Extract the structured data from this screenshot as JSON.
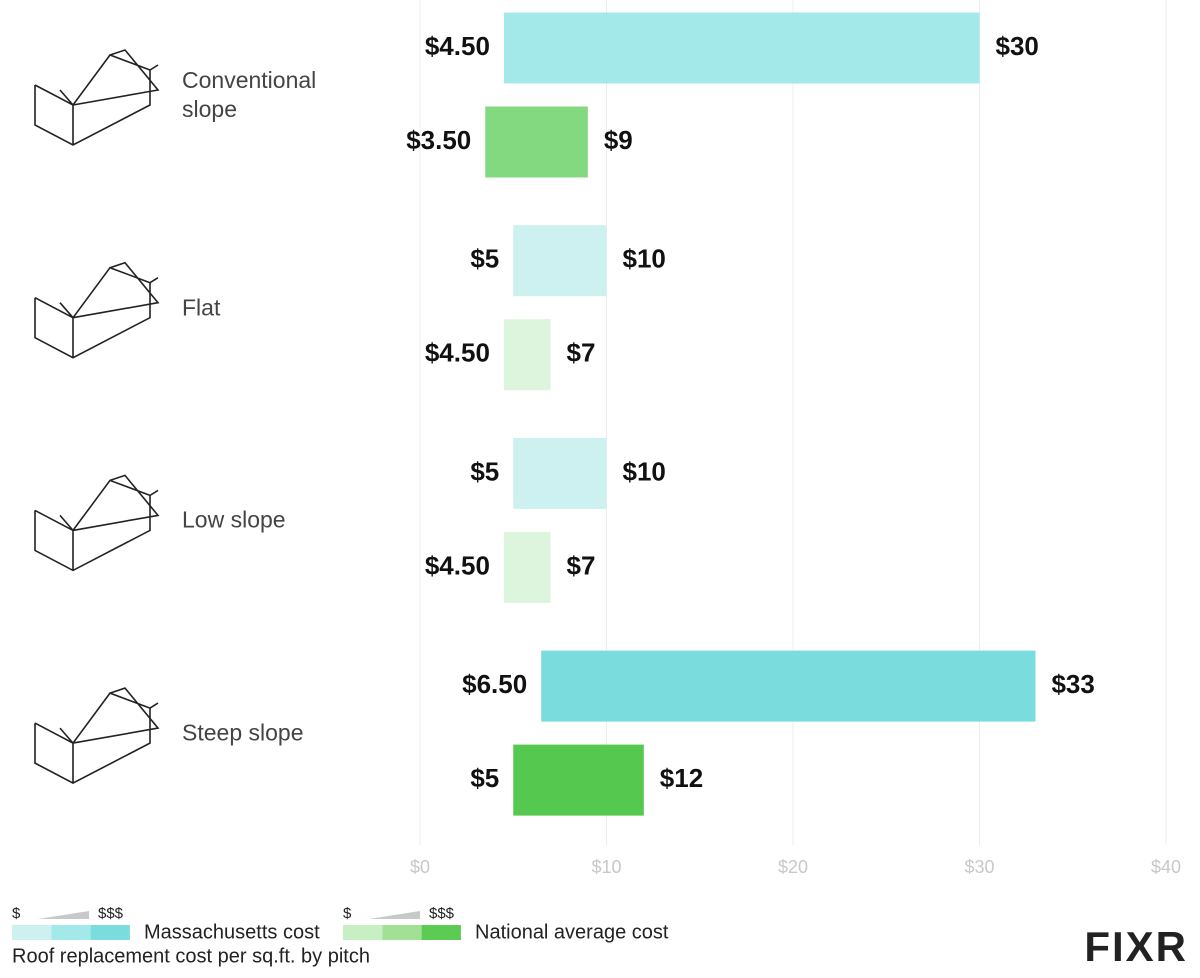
{
  "chart_data": {
    "type": "floating_bar",
    "title": "Roof replacement cost per sq.ft. by pitch",
    "categories": [
      "Conventional slope",
      "Flat",
      "Low slope",
      "Steep slope"
    ],
    "series": [
      {
        "name": "Massachusetts cost",
        "colors": [
          "#a3e9e9",
          "#cdf1f1",
          "#cdf1f1",
          "#7adcdc"
        ],
        "values": [
          [
            4.5,
            30
          ],
          [
            5,
            10
          ],
          [
            5,
            10
          ],
          [
            6.5,
            33
          ]
        ],
        "value_labels": [
          [
            "$4.50",
            "$30"
          ],
          [
            "$5",
            "$10"
          ],
          [
            "$5",
            "$10"
          ],
          [
            "$6.50",
            "$33"
          ]
        ],
        "scale_colors": [
          "#cdf1f1",
          "#a3e9e9",
          "#7adcdc"
        ]
      },
      {
        "name": "National average cost",
        "colors": [
          "#83d97f",
          "#dcf5dc",
          "#dcf5dc",
          "#55c84f"
        ],
        "values": [
          [
            3.5,
            9
          ],
          [
            4.5,
            7
          ],
          [
            4.5,
            7
          ],
          [
            5,
            12
          ]
        ],
        "value_labels": [
          [
            "$3.50",
            "$9"
          ],
          [
            "$4.50",
            "$7"
          ],
          [
            "$4.50",
            "$7"
          ],
          [
            "$5",
            "$12"
          ]
        ],
        "scale_colors": [
          "#c8efc4",
          "#a0e195",
          "#5bcb54"
        ]
      }
    ],
    "legend_scale": [
      "$",
      "$$$"
    ],
    "xlim": [
      0,
      40
    ],
    "xticks": [
      {
        "value": 0,
        "label": "$0"
      },
      {
        "value": 10,
        "label": "$10"
      },
      {
        "value": 20,
        "label": "$20"
      },
      {
        "value": 30,
        "label": "$30"
      },
      {
        "value": 40,
        "label": "$40"
      }
    ],
    "grid": true,
    "brand": "FIXR"
  }
}
